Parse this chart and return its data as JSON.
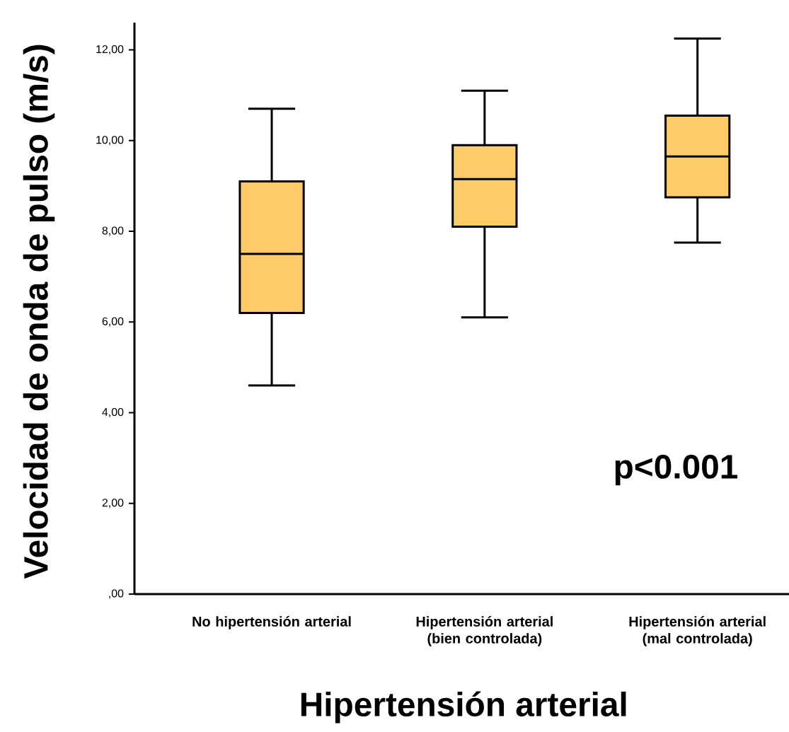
{
  "chart_data": {
    "type": "box",
    "xlabel": "Hipertensión arterial",
    "ylabel": "Velocidad de onda de pulso (m/s)",
    "categories": [
      "No hipertensión arterial",
      "Hipertensión arterial (bien controlada)",
      "Hipertensión arterial (mal controlada)"
    ],
    "boxes": [
      {
        "low": 4.6,
        "q1": 6.2,
        "median": 7.5,
        "q3": 9.1,
        "high": 10.7
      },
      {
        "low": 6.1,
        "q1": 8.1,
        "median": 9.15,
        "q3": 9.9,
        "high": 11.1
      },
      {
        "low": 7.75,
        "q1": 8.75,
        "median": 9.65,
        "q3": 10.55,
        "high": 12.25
      }
    ],
    "color": "#fecb6a",
    "ylim": [
      0,
      12.6
    ],
    "yticks": [
      {
        "value": 0,
        "label": ",00"
      },
      {
        "value": 2,
        "label": "2,00"
      },
      {
        "value": 4,
        "label": "4,00"
      },
      {
        "value": 6,
        "label": "6,00"
      },
      {
        "value": 8,
        "label": "8,00"
      },
      {
        "value": 10,
        "label": "10,00"
      },
      {
        "value": 12,
        "label": "12,00"
      }
    ],
    "annotations": [
      "p<0.001"
    ]
  }
}
